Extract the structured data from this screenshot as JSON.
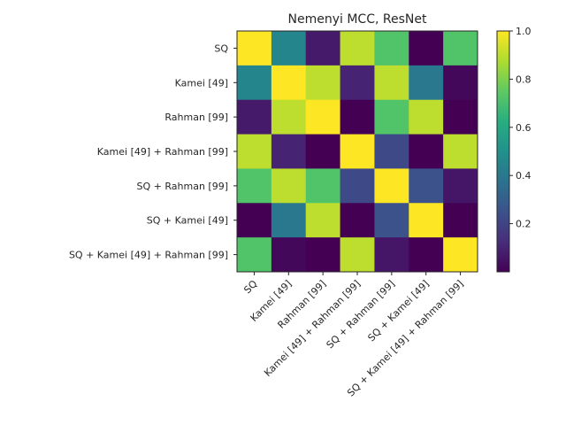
{
  "chart_data": {
    "type": "heatmap",
    "title": "Nemenyi MCC, ResNet",
    "xlabel": "",
    "ylabel": "",
    "labels": [
      "SQ",
      "Kamei [49]",
      "Rahman [99]",
      "Kamei [49] + Rahman [99]",
      "SQ + Rahman [99]",
      "SQ + Kamei [49]",
      "SQ + Kamei [49] + Rahman [99]"
    ],
    "matrix": [
      [
        1.0,
        0.45,
        0.07,
        0.9,
        0.72,
        0.001,
        0.72
      ],
      [
        0.45,
        1.0,
        0.9,
        0.1,
        0.9,
        0.4,
        0.02
      ],
      [
        0.07,
        0.9,
        1.0,
        0.001,
        0.72,
        0.9,
        0.001
      ],
      [
        0.9,
        0.1,
        0.001,
        1.0,
        0.22,
        0.001,
        0.9
      ],
      [
        0.72,
        0.9,
        0.72,
        0.22,
        1.0,
        0.25,
        0.06
      ],
      [
        0.001,
        0.4,
        0.9,
        0.001,
        0.25,
        1.0,
        0.001
      ],
      [
        0.72,
        0.02,
        0.001,
        0.9,
        0.06,
        0.001,
        1.0
      ]
    ],
    "colormap": "viridis",
    "colorbar": {
      "range": [
        0.0,
        1.0
      ],
      "ticks": [
        0.2,
        0.4,
        0.6,
        0.8,
        1.0
      ],
      "tick_labels": [
        "0.2",
        "0.4",
        "0.6",
        "0.8",
        "1.0"
      ]
    },
    "grid": false
  }
}
